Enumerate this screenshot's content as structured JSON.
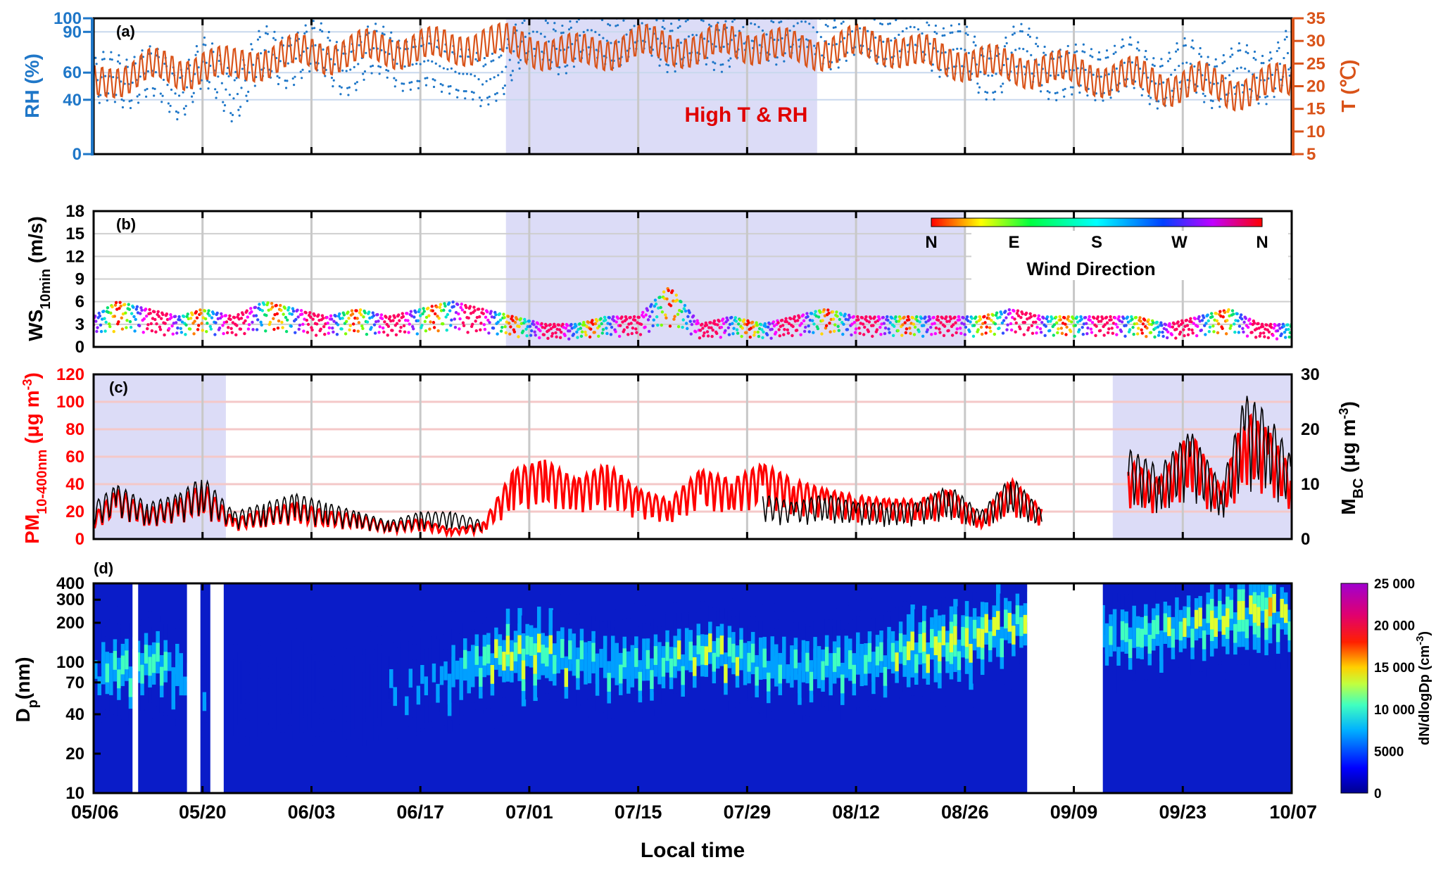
{
  "figure": {
    "x_axis": {
      "label": "Local time",
      "ticks": [
        "05/06",
        "05/20",
        "06/03",
        "06/17",
        "07/01",
        "07/15",
        "07/29",
        "08/12",
        "08/26",
        "09/09",
        "09/23",
        "10/07"
      ]
    },
    "colors": {
      "rh": "#1f77c8",
      "temperature": "#d95319",
      "pm": "#ff0000",
      "bc": "#000000",
      "shade": "#dcdcf7",
      "gridline": "#c8c8c8"
    }
  },
  "chart_data": [
    {
      "panel": "(a)",
      "type": "line",
      "annotation": "High T & RH",
      "shaded_range": [
        "06/28",
        "08/07"
      ],
      "left_axis": {
        "label": "RH (%)",
        "ticks": [
          "0",
          "40",
          "60",
          "90",
          "100"
        ],
        "ylim": [
          0,
          100
        ]
      },
      "right_axis": {
        "label": "T (℃)",
        "ticks": [
          "5",
          "10",
          "15",
          "20",
          "25",
          "30",
          "35"
        ],
        "ylim": [
          5,
          35
        ]
      },
      "series": [
        {
          "name": "RH",
          "axis": "left",
          "style": "dots",
          "x": [
            "05/06",
            "05/09",
            "05/13",
            "05/17",
            "05/20",
            "05/24",
            "05/28",
            "06/01",
            "06/05",
            "06/09",
            "06/13",
            "06/17",
            "06/21",
            "06/25",
            "06/29",
            "07/03",
            "07/07",
            "07/11",
            "07/15",
            "07/19",
            "07/23",
            "07/27",
            "07/31",
            "08/04",
            "08/08",
            "08/12",
            "08/16",
            "08/20",
            "08/24",
            "08/28",
            "09/01",
            "09/05",
            "09/09",
            "09/13",
            "09/17",
            "09/21",
            "09/25",
            "09/29",
            "10/03",
            "10/07"
          ],
          "values": [
            45,
            60,
            55,
            50,
            62,
            48,
            70,
            75,
            72,
            65,
            78,
            60,
            70,
            45,
            80,
            85,
            82,
            88,
            90,
            85,
            80,
            88,
            90,
            92,
            88,
            85,
            90,
            86,
            80,
            60,
            72,
            68,
            55,
            65,
            60,
            58,
            62,
            55,
            60,
            70
          ]
        },
        {
          "name": "T",
          "axis": "right",
          "style": "line",
          "x": [
            "05/06",
            "05/09",
            "05/13",
            "05/17",
            "05/20",
            "05/24",
            "05/28",
            "06/01",
            "06/05",
            "06/09",
            "06/13",
            "06/17",
            "06/21",
            "06/25",
            "06/29",
            "07/03",
            "07/07",
            "07/11",
            "07/15",
            "07/19",
            "07/23",
            "07/27",
            "07/31",
            "08/04",
            "08/08",
            "08/12",
            "08/16",
            "08/20",
            "08/24",
            "08/28",
            "09/01",
            "09/05",
            "09/09",
            "09/13",
            "09/17",
            "09/21",
            "09/25",
            "09/29",
            "10/03",
            "10/07"
          ],
          "values": [
            20,
            22,
            24,
            23,
            25,
            24,
            26,
            27,
            27,
            28,
            28,
            29,
            28,
            30,
            29,
            28,
            27,
            28,
            29,
            29,
            28,
            30,
            29,
            28,
            28,
            29,
            29,
            27,
            26,
            25,
            24,
            24,
            23,
            22,
            22,
            20,
            21,
            19,
            20,
            21
          ]
        }
      ]
    },
    {
      "panel": "(b)",
      "type": "scatter",
      "shaded_range": [
        "06/28",
        "08/26"
      ],
      "y_axis": {
        "label": "WS",
        "label_subscript": "10min",
        "label_unit": " (m/s)",
        "ticks": [
          "0",
          "3",
          "6",
          "9",
          "12",
          "15",
          "18"
        ],
        "ylim": [
          0,
          18
        ]
      },
      "colorbar": {
        "label": "Wind Direction",
        "ticks": [
          "N",
          "E",
          "S",
          "W",
          "N"
        ]
      },
      "series": [
        {
          "name": "WS10min",
          "x": [
            "05/06",
            "05/09",
            "05/13",
            "05/17",
            "05/20",
            "05/24",
            "05/28",
            "06/01",
            "06/05",
            "06/09",
            "06/13",
            "06/17",
            "06/21",
            "06/25",
            "06/29",
            "07/03",
            "07/07",
            "07/11",
            "07/15",
            "07/19",
            "07/23",
            "07/27",
            "07/31",
            "08/04",
            "08/08",
            "08/12",
            "08/16",
            "08/20",
            "08/24",
            "08/28",
            "09/01",
            "09/05",
            "09/09",
            "09/13",
            "09/17",
            "09/21",
            "09/25",
            "09/29",
            "10/03",
            "10/07"
          ],
          "values": [
            4,
            6,
            5,
            4,
            5,
            4,
            6,
            5,
            4,
            5,
            4,
            5,
            6,
            5,
            4,
            3,
            3,
            4,
            4,
            8,
            3,
            4,
            3,
            4,
            5,
            4,
            4,
            4,
            4,
            4,
            5,
            4,
            4,
            4,
            4,
            3,
            4,
            5,
            3,
            3
          ]
        }
      ]
    },
    {
      "panel": "(c)",
      "type": "line",
      "shaded_ranges": [
        [
          "05/06",
          "05/23"
        ],
        [
          "09/14",
          "10/07"
        ]
      ],
      "left_axis": {
        "label": "PM",
        "label_subscript": "10-400nm",
        "label_unit": " (μg m",
        "label_sup": "-3",
        "label_close": ")",
        "ticks": [
          "0",
          "20",
          "40",
          "60",
          "80",
          "100",
          "120"
        ],
        "ylim": [
          0,
          120
        ]
      },
      "right_axis": {
        "label": "M",
        "label_subscript": "BC",
        "label_unit": " (μg m",
        "label_sup": "-3",
        "label_close": ")",
        "ticks": [
          "0",
          "10",
          "20",
          "30"
        ],
        "ylim": [
          0,
          30
        ]
      },
      "series": [
        {
          "name": "PM10-400nm",
          "axis": "left",
          "x": [
            "05/06",
            "05/09",
            "05/13",
            "05/17",
            "05/20",
            "05/24",
            "05/28",
            "06/01",
            "06/05",
            "06/09",
            "06/13",
            "06/17",
            "06/21",
            "06/25",
            "06/29",
            "07/03",
            "07/07",
            "07/11",
            "07/15",
            "07/19",
            "07/23",
            "07/27",
            "07/31",
            "08/04",
            "08/08",
            "08/12",
            "08/16",
            "08/20",
            "08/24",
            "08/28",
            "09/01",
            "09/05",
            "09/16",
            "09/20",
            "09/24",
            "09/28",
            "10/01",
            "10/04",
            "10/07"
          ],
          "values": [
            12,
            25,
            15,
            20,
            28,
            10,
            15,
            18,
            14,
            12,
            8,
            10,
            5,
            8,
            35,
            40,
            30,
            38,
            25,
            20,
            35,
            30,
            38,
            30,
            25,
            22,
            20,
            20,
            25,
            12,
            30,
            15,
            40,
            30,
            55,
            25,
            65,
            55,
            35
          ]
        },
        {
          "name": "MBC",
          "axis": "right",
          "x": [
            "05/06",
            "05/09",
            "05/13",
            "05/17",
            "05/20",
            "05/24",
            "05/28",
            "06/01",
            "06/05",
            "06/09",
            "06/13",
            "06/17",
            "06/21",
            "06/25",
            "07/31",
            "08/04",
            "08/08",
            "08/12",
            "08/16",
            "08/20",
            "08/24",
            "08/28",
            "09/01",
            "09/05",
            "09/16",
            "09/20",
            "09/24",
            "09/28",
            "10/01",
            "10/04",
            "10/07"
          ],
          "values": [
            4,
            6,
            4,
            5,
            7,
            3,
            4,
            5,
            4,
            3,
            2,
            3,
            3,
            2,
            5,
            4,
            5,
            4,
            4,
            4,
            6,
            3,
            7,
            3,
            10,
            8,
            12,
            6,
            16,
            14,
            9
          ]
        }
      ]
    },
    {
      "panel": "(d)",
      "type": "heatmap",
      "y_axis": {
        "label": "D",
        "label_subscript": "p",
        "label_unit": "(nm)",
        "scale": "log",
        "ticks": [
          "10",
          "20",
          "40",
          "70",
          "100",
          "200",
          "300",
          "400"
        ],
        "ylim": [
          10,
          400
        ]
      },
      "colorbar": {
        "label": "dN/dlogDp (cm",
        "label_sup": "-3",
        "label_close": ")",
        "ticks": [
          "0",
          "5000",
          "10 000",
          "15 000",
          "20 000",
          "25 000"
        ],
        "clim": [
          0,
          25000
        ]
      },
      "gaps": [
        [
          "05/11",
          "05/11"
        ],
        [
          "05/18",
          "05/19"
        ],
        [
          "05/21",
          "05/22"
        ],
        [
          "09/03",
          "09/12"
        ]
      ],
      "x": [
        "05/06",
        "05/10",
        "05/14",
        "05/18",
        "05/22",
        "05/26",
        "05/30",
        "06/03",
        "06/07",
        "06/11",
        "06/15",
        "06/19",
        "06/23",
        "06/27",
        "07/01",
        "07/05",
        "07/09",
        "07/13",
        "07/17",
        "07/21",
        "07/25",
        "07/29",
        "08/02",
        "08/06",
        "08/10",
        "08/14",
        "08/18",
        "08/22",
        "08/26",
        "08/30",
        "09/03",
        "09/14",
        "09/18",
        "09/22",
        "09/26",
        "09/30",
        "10/04",
        "10/07"
      ],
      "mode_diameter_nm": [
        80,
        90,
        100,
        70,
        60,
        60,
        70,
        60,
        55,
        60,
        65,
        70,
        90,
        110,
        120,
        110,
        100,
        90,
        95,
        110,
        120,
        100,
        90,
        90,
        95,
        100,
        120,
        130,
        140,
        180,
        200,
        150,
        160,
        180,
        200,
        220,
        250,
        200
      ],
      "peak_dNdlogDp": [
        9000,
        16000,
        14000,
        9000,
        5000,
        5000,
        6000,
        6000,
        5500,
        6000,
        7000,
        8000,
        12000,
        16000,
        17000,
        15000,
        12000,
        12000,
        14000,
        15000,
        16000,
        14000,
        12000,
        12000,
        13000,
        14000,
        16000,
        17000,
        17000,
        16000,
        15000,
        12000,
        14000,
        15000,
        16000,
        17000,
        18000,
        14000
      ]
    }
  ]
}
